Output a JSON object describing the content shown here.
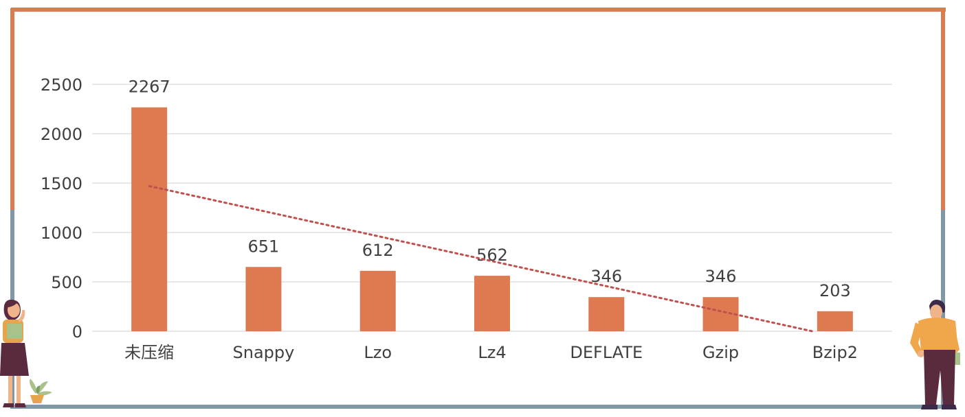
{
  "colors": {
    "frame_top": "#dd7a50",
    "frame_bottom": "#7e98a5",
    "bar": "#dd7a50",
    "trend": "#c0504d",
    "grid": "#d9d9d9",
    "text": "#404040"
  },
  "chart_data": {
    "type": "bar",
    "title": "",
    "xlabel": "",
    "ylabel": "",
    "categories": [
      "未压缩",
      "Snappy",
      "Lzo",
      "Lz4",
      "DEFLATE",
      "Gzip",
      "Bzip2"
    ],
    "values": [
      2267,
      651,
      612,
      562,
      346,
      346,
      203
    ],
    "ylim": [
      0,
      2500
    ],
    "yticks": [
      0,
      500,
      1000,
      1500,
      2000,
      2500
    ],
    "data_labels": true,
    "grid": true,
    "legend": "none",
    "trendline": {
      "type": "linear",
      "style": "dotted",
      "start": 1470,
      "end": 0
    }
  },
  "decorations": {
    "left_figure": "woman-holding-book-illustration",
    "right_figure": "man-holding-card-illustration",
    "plant": "potted-plant-illustration"
  }
}
